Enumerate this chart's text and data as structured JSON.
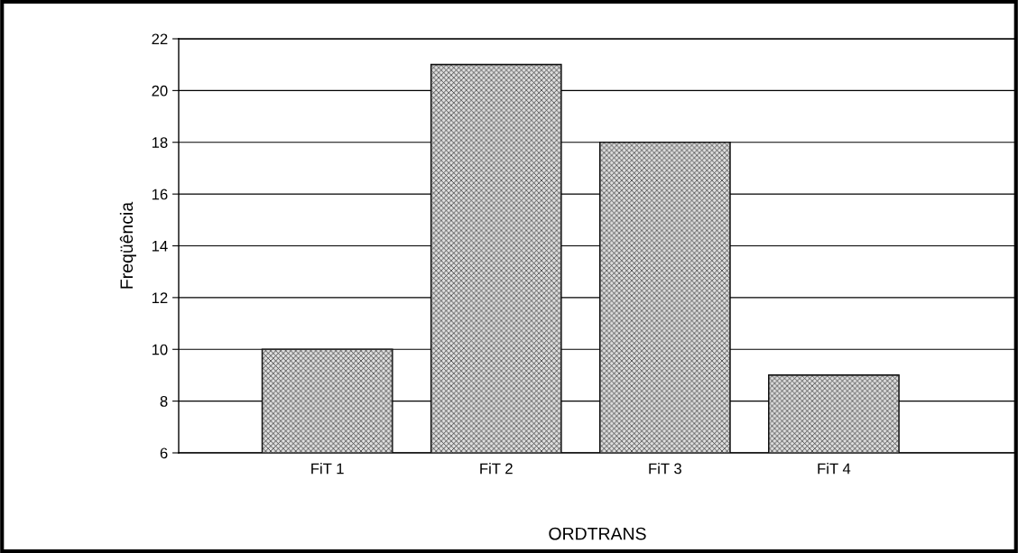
{
  "chart_data": {
    "type": "bar",
    "xlabel": "ORDTRANS",
    "ylabel": "Freqüência",
    "categories": [
      "FiT 1",
      "FiT 2",
      "FiT 3",
      "FiT 4"
    ],
    "values": [
      10,
      21,
      18,
      9
    ],
    "color": "#a6a6a6",
    "ylim": [
      6,
      22
    ],
    "yticks": [
      6,
      8,
      10,
      12,
      14,
      16,
      18,
      20,
      22
    ],
    "grid": "y",
    "legend": false
  }
}
